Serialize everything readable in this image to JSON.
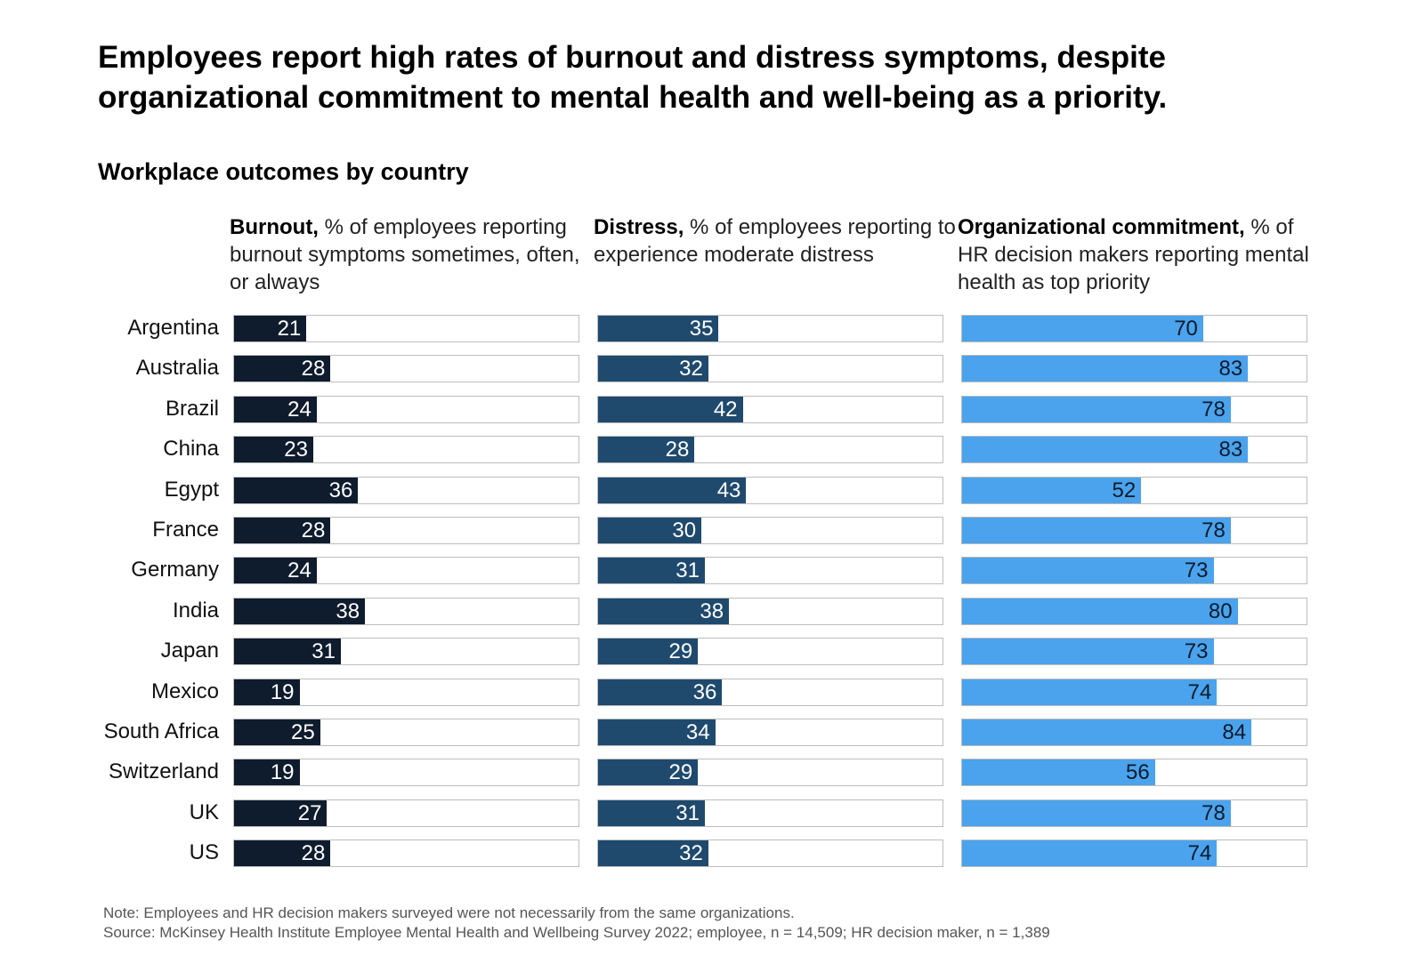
{
  "title": "Employees report high rates of burnout and distress symptoms, despite organizational commitment to mental health and well-being as a priority.",
  "subtitle": "Workplace outcomes by country",
  "columns": [
    {
      "bold": "Burnout,",
      "rest": " % of employees reporting burnout symptoms sometimes, often, or always",
      "color": "#0f1c2e",
      "label_color": "#ffffff"
    },
    {
      "bold": "Distress,",
      "rest": " % of employees reporting to experience moderate distress",
      "color": "#1f4a6e",
      "label_color": "#ffffff"
    },
    {
      "bold": "Organizational commitment,",
      "rest": " % of HR decision makers reporting mental health as top priority",
      "color": "#4aa3ec",
      "label_color": "#0b1a2b"
    }
  ],
  "chart_data": {
    "type": "bar",
    "orientation": "horizontal",
    "title": "Employees report high rates of burnout and distress symptoms, despite organizational commitment to mental health and well-being as a priority.",
    "subtitle": "Workplace outcomes by country",
    "categories": [
      "Argentina",
      "Australia",
      "Brazil",
      "China",
      "Egypt",
      "France",
      "Germany",
      "India",
      "Japan",
      "Mexico",
      "South Africa",
      "Switzerland",
      "UK",
      "US"
    ],
    "xlim": [
      0,
      100
    ],
    "series": [
      {
        "name": "Burnout",
        "values": [
          21,
          28,
          24,
          23,
          36,
          28,
          24,
          38,
          31,
          19,
          25,
          19,
          27,
          28
        ]
      },
      {
        "name": "Distress",
        "values": [
          35,
          32,
          42,
          28,
          43,
          30,
          31,
          38,
          29,
          36,
          34,
          29,
          31,
          32
        ]
      },
      {
        "name": "Organizational commitment",
        "values": [
          70,
          83,
          78,
          83,
          52,
          78,
          73,
          80,
          73,
          74,
          84,
          56,
          78,
          74
        ]
      }
    ]
  },
  "note": "Note: Employees and HR decision makers surveyed were not necessarily from the same organizations.",
  "source": "Source: McKinsey Health Institute Employee Mental Health and Wellbeing Survey 2022; employee, n = 14,509; HR decision maker, n = 1,389"
}
